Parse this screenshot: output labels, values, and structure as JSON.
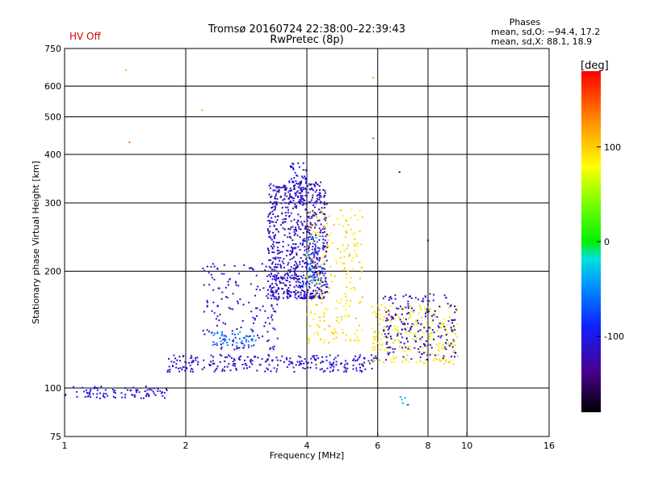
{
  "header": {
    "status": "HV Off",
    "title": "Tromsø 20160724 22:38:00–22:39:43",
    "subtitle": "RwPretec (8p)",
    "status_color": "#d40000"
  },
  "phases_box": {
    "title": "Phases",
    "line_o": "mean, sd,O: −94.4, 17.2",
    "line_x": "mean, sd,X: 88.1, 18.9"
  },
  "chart_data": {
    "type": "scatter",
    "xlabel": "Frequency [MHz]",
    "ylabel": "Stationary phase Virtual Height [km]",
    "x_scale": "log",
    "y_scale": "log",
    "xlim": [
      1,
      16
    ],
    "ylim": [
      75,
      750
    ],
    "grid": true,
    "x_ticks": [
      1,
      2,
      4,
      6,
      8,
      10,
      16
    ],
    "x_tick_labels": [
      "1",
      "2",
      "4",
      "6",
      "8",
      "10",
      "16"
    ],
    "x_grid_values": [
      2,
      4,
      6,
      8,
      10,
      16
    ],
    "y_ticks": [
      75,
      100,
      200,
      300,
      400,
      500,
      600,
      750
    ],
    "y_tick_labels": [
      "75",
      "100",
      "200",
      "300",
      "400",
      "500",
      "600",
      "750"
    ],
    "y_grid_values": [
      100,
      200,
      300,
      400,
      500,
      600
    ],
    "colorbar": {
      "label": "[deg]",
      "range": [
        -180,
        180
      ],
      "ticks": [
        100,
        0,
        -100
      ],
      "tick_labels": [
        "100",
        "0",
        "-100"
      ]
    },
    "clusters": [
      {
        "name": "low-frequency trace",
        "x": [
          1.0,
          1.8
        ],
        "y": [
          94,
          101
        ],
        "phase": -105,
        "n": 90
      },
      {
        "name": "main O-trace",
        "x": [
          1.8,
          6.0
        ],
        "y": [
          110,
          122
        ],
        "phase": -110,
        "n": 260
      },
      {
        "name": "F-region spread blob",
        "x": [
          3.2,
          4.5
        ],
        "y": [
          170,
          340
        ],
        "phase": -115,
        "n": 800
      },
      {
        "name": "upper spread tail",
        "x": [
          3.6,
          4.0
        ],
        "y": [
          300,
          380
        ],
        "phase": -105,
        "n": 60
      },
      {
        "name": "cyan streaks",
        "x": [
          3.9,
          4.4
        ],
        "y": [
          180,
          250
        ],
        "phase": -60,
        "n": 60
      },
      {
        "name": "X-trace yellow band",
        "x": [
          4.0,
          5.5
        ],
        "y": [
          130,
          290
        ],
        "phase": 95,
        "n": 220
      },
      {
        "name": "yellow high-frequency trace",
        "x": [
          5.8,
          9.5
        ],
        "y": [
          115,
          165
        ],
        "phase": 90,
        "n": 230
      },
      {
        "name": "blue high-frequency trace",
        "x": [
          6.2,
          9.4
        ],
        "y": [
          118,
          175
        ],
        "phase": -112,
        "n": 200
      },
      {
        "name": "oblique rising trace",
        "x": [
          2.2,
          3.4
        ],
        "y": [
          125,
          210
        ],
        "phase": -110,
        "n": 160
      },
      {
        "name": "cyan lower band",
        "x": [
          2.3,
          3.0
        ],
        "y": [
          128,
          140
        ],
        "phase": -60,
        "n": 50
      },
      {
        "name": "outlier",
        "x": [
          1.42,
          1.42
        ],
        "y": [
          660,
          660
        ],
        "phase": 120,
        "n": 1
      },
      {
        "name": "outlier",
        "x": [
          1.45,
          1.45
        ],
        "y": [
          430,
          430
        ],
        "phase": 145,
        "n": 1
      },
      {
        "name": "outlier",
        "x": [
          2.2,
          2.2
        ],
        "y": [
          520,
          520
        ],
        "phase": 115,
        "n": 1
      },
      {
        "name": "outlier",
        "x": [
          5.85,
          5.85
        ],
        "y": [
          630,
          630
        ],
        "phase": 110,
        "n": 1
      },
      {
        "name": "outlier",
        "x": [
          5.85,
          5.85
        ],
        "y": [
          440,
          440
        ],
        "phase": -50,
        "n": 1
      },
      {
        "name": "outlier",
        "x": [
          8.0,
          8.0
        ],
        "y": [
          240,
          240
        ],
        "phase": -150,
        "n": 1
      },
      {
        "name": "outlier",
        "x": [
          6.8,
          6.8
        ],
        "y": [
          360,
          360
        ],
        "phase": -120,
        "n": 1
      },
      {
        "name": "outlier",
        "x": [
          6.8,
          7.2
        ],
        "y": [
          90,
          96
        ],
        "phase": -40,
        "n": 6
      }
    ]
  }
}
